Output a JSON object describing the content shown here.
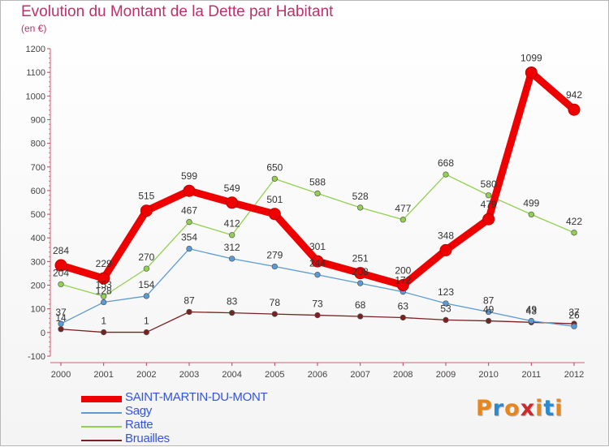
{
  "title": "Evolution du Montant de la Dette par Habitant",
  "subtitle": "(en €)",
  "logo": {
    "text": "Proxiti",
    "colors": [
      "#e8861a",
      "#2a8ad0",
      "#e8861a",
      "#cc2b2b",
      "#e8861a",
      "#2a8ad0",
      "#e8861a"
    ]
  },
  "chart_data": {
    "type": "line",
    "x": [
      "2000",
      "2001",
      "2002",
      "2003",
      "2004",
      "2005",
      "2006",
      "2007",
      "2008",
      "2009",
      "2010",
      "2011",
      "2012"
    ],
    "ylim": [
      -100,
      1200
    ],
    "yticks": [
      "-100",
      "0",
      "100",
      "200",
      "300",
      "400",
      "500",
      "600",
      "700",
      "800",
      "900",
      "1000",
      "1100",
      "1200"
    ],
    "grid": false,
    "legend_position": "bottom-left",
    "series": [
      {
        "name": "SAINT-MARTIN-DU-MONT",
        "color": "#ee0000",
        "values": [
          284,
          229,
          515,
          599,
          549,
          501,
          301,
          251,
          200,
          348,
          479,
          1099,
          942
        ],
        "labels": [
          "284",
          "229",
          "515",
          "599",
          "549",
          "501",
          "301",
          "251",
          "200",
          "348",
          "479",
          "1099",
          "942"
        ]
      },
      {
        "name": "Sagy",
        "color": "#5b9bd5",
        "values": [
          37,
          128,
          154,
          354,
          312,
          279,
          244,
          208,
          172,
          123,
          87,
          49,
          26
        ],
        "labels": [
          "37",
          "128",
          "154",
          "354",
          "312",
          "279",
          "244",
          "208",
          "172",
          "123",
          "87",
          "49",
          "26"
        ]
      },
      {
        "name": "Ratte",
        "color": "#92d050",
        "values": [
          204,
          153,
          270,
          467,
          412,
          650,
          588,
          528,
          477,
          668,
          580,
          499,
          422
        ],
        "labels": [
          "204",
          "153",
          "270",
          "467",
          "412",
          "650",
          "588",
          "528",
          "477",
          "668",
          "580",
          "499",
          "422"
        ]
      },
      {
        "name": "Bruailles",
        "color": "#7b2020",
        "values": [
          14,
          1,
          1,
          87,
          83,
          78,
          73,
          68,
          63,
          53,
          49,
          43,
          37
        ],
        "labels": [
          "14",
          "1",
          "1",
          "87",
          "83",
          "78",
          "73",
          "68",
          "63",
          "53",
          "49",
          "43",
          "37"
        ]
      }
    ]
  }
}
